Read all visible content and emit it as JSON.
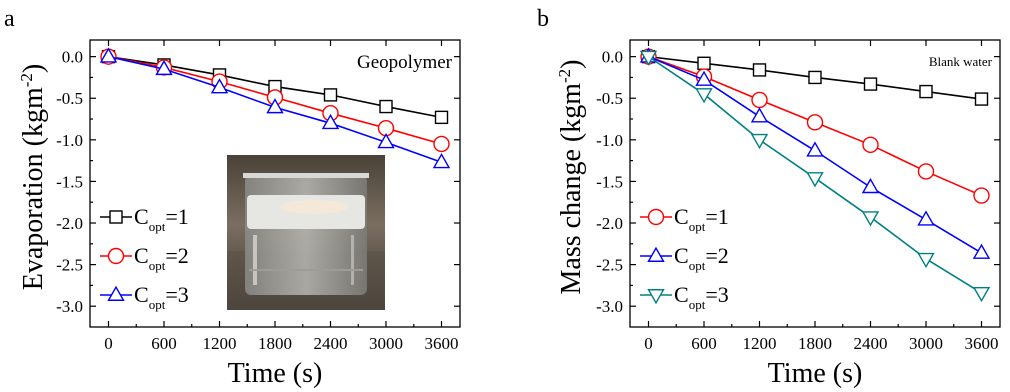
{
  "chart_data": [
    {
      "panel": "a",
      "type": "line",
      "annotation": "Geopolymer",
      "xlabel": "Time (s)",
      "ylabel": "Evaporation (kgm-2)",
      "ylabel_main": "Evaporation (kgm",
      "ylabel_sup": "-2",
      "ylabel_end": ")",
      "xlim": [
        -200,
        3800
      ],
      "ylim": [
        -3.25,
        0.2
      ],
      "xticks": [
        0,
        600,
        1200,
        1800,
        2400,
        3000,
        3600
      ],
      "yticks": [
        0.0,
        -0.5,
        -1.0,
        -1.5,
        -2.0,
        -2.5,
        -3.0
      ],
      "ytick_labels": [
        "0.0",
        "-0.5",
        "-1.0",
        "-1.5",
        "-2.0",
        "-2.5",
        "-3.0"
      ],
      "x": [
        0,
        600,
        1200,
        1800,
        2400,
        3000,
        3600
      ],
      "series": [
        {
          "legend_main": "C",
          "legend_sub": "opt",
          "legend_end": "=1",
          "color": "#000000",
          "marker": "square",
          "values": [
            0.0,
            -0.1,
            -0.22,
            -0.36,
            -0.46,
            -0.6,
            -0.73
          ]
        },
        {
          "legend_main": "C",
          "legend_sub": "opt",
          "legend_end": "=2",
          "color": "#ff0000",
          "marker": "circle",
          "values": [
            0.0,
            -0.13,
            -0.3,
            -0.49,
            -0.68,
            -0.86,
            -1.05
          ]
        },
        {
          "legend_main": "C",
          "legend_sub": "opt",
          "legend_end": "=3",
          "color": "#0000ff",
          "marker": "triangle-up",
          "values": [
            0.0,
            -0.15,
            -0.37,
            -0.61,
            -0.8,
            -1.03,
            -1.27
          ]
        }
      ],
      "legend_position": "bottom-left",
      "inset_photo": "beaker with floating geopolymer foam in water"
    },
    {
      "panel": "b",
      "type": "line",
      "annotation": "Blank water",
      "xlabel": "Time (s)",
      "ylabel": "Mass change (kgm-2)",
      "ylabel_main": "Mass change (kgm",
      "ylabel_sup": "-2",
      "ylabel_end": ")",
      "xlim": [
        -200,
        3800
      ],
      "ylim": [
        -3.25,
        0.2
      ],
      "xticks": [
        0,
        600,
        1200,
        1800,
        2400,
        3000,
        3600
      ],
      "yticks": [
        0.0,
        -0.5,
        -1.0,
        -1.5,
        -2.0,
        -2.5,
        -3.0
      ],
      "ytick_labels": [
        "0.0",
        "-0.5",
        "-1.0",
        "-1.5",
        "-2.0",
        "-2.5",
        "-3.0"
      ],
      "x": [
        0,
        600,
        1200,
        1800,
        2400,
        3000,
        3600
      ],
      "series": [
        {
          "legend_main": "",
          "legend_sub": "",
          "legend_end": "",
          "color": "#000000",
          "marker": "square",
          "values": [
            0.0,
            -0.08,
            -0.16,
            -0.25,
            -0.33,
            -0.42,
            -0.51
          ]
        },
        {
          "legend_main": "C",
          "legend_sub": "opt",
          "legend_end": "=1",
          "color": "#ff0000",
          "marker": "circle",
          "values": [
            0.0,
            -0.24,
            -0.52,
            -0.79,
            -1.06,
            -1.38,
            -1.67
          ]
        },
        {
          "legend_main": "C",
          "legend_sub": "opt",
          "legend_end": "=2",
          "color": "#0000ff",
          "marker": "triangle-up",
          "values": [
            0.0,
            -0.28,
            -0.72,
            -1.13,
            -1.57,
            -1.96,
            -2.36
          ]
        },
        {
          "legend_main": "C",
          "legend_sub": "opt",
          "legend_end": "=3",
          "color": "#008080",
          "marker": "triangle-down",
          "values": [
            0.0,
            -0.45,
            -1.0,
            -1.46,
            -1.93,
            -2.43,
            -2.84
          ]
        }
      ],
      "legend_position": "bottom-left"
    }
  ]
}
